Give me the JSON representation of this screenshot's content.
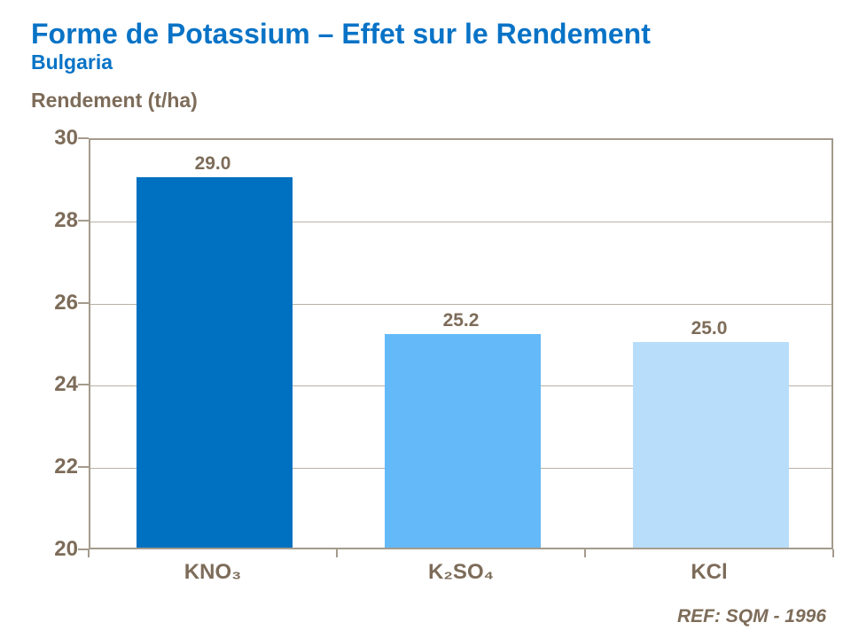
{
  "header": {
    "title": "Forme de Potassium – Effet sur le Rendement",
    "subtitle": "Bulgaria"
  },
  "footer": {
    "ref": "REF: SQM - 1996"
  },
  "colors": {
    "title_blue": "#0873C6",
    "text_brown": "#7D6C59",
    "axis_line": "#A49B8D",
    "gridline": "#B9B1A4"
  },
  "chart_data": {
    "type": "bar",
    "title": "Rendement (t/ha)",
    "ylabel": "Rendement (t/ha)",
    "xlabel": "",
    "categories": [
      "KNO₃",
      "K₂SO₄",
      "KCl"
    ],
    "values": [
      29.0,
      25.2,
      25.0
    ],
    "value_labels": [
      "29.0",
      "25.2",
      "25.0"
    ],
    "bar_colors": [
      "#0070C0",
      "#64B9F9",
      "#B8DDFA"
    ],
    "ylim": [
      20,
      30
    ],
    "yticks": [
      20,
      22,
      24,
      26,
      28,
      30
    ],
    "grid": true,
    "legend": false,
    "bar_width_fraction": 0.63
  }
}
